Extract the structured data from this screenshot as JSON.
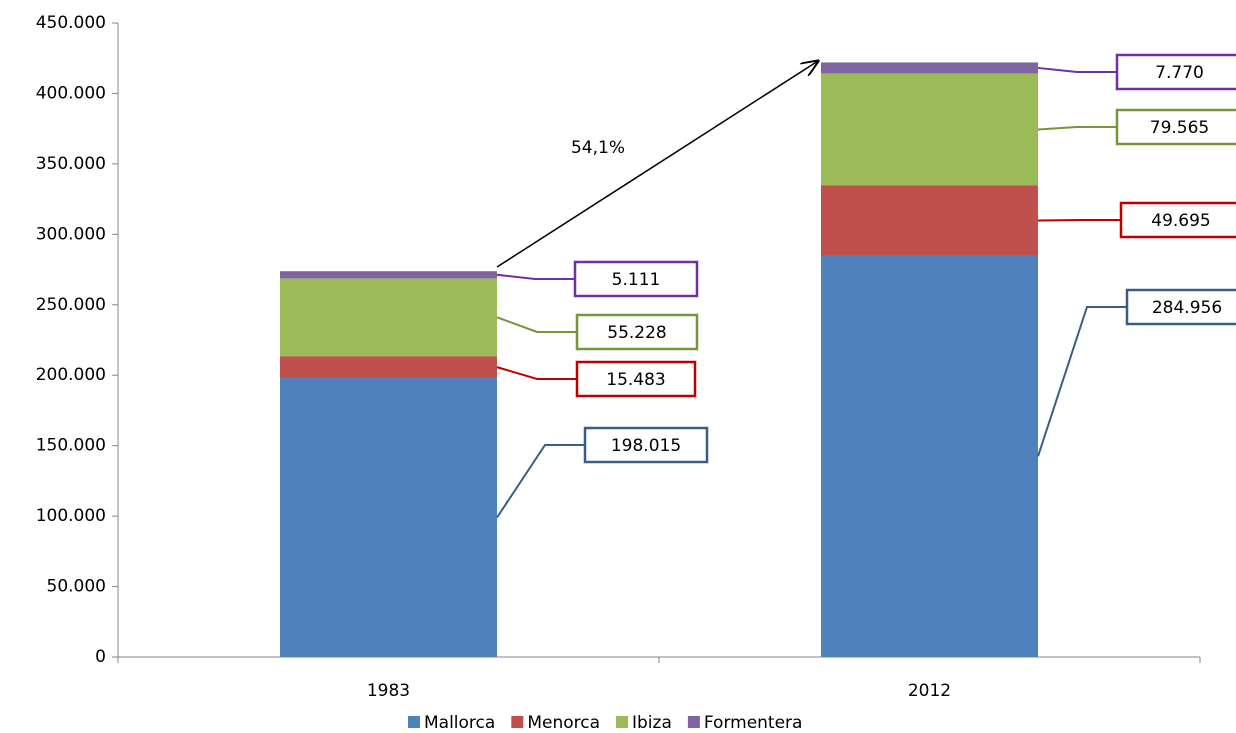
{
  "chart_data": {
    "type": "stacked-bar",
    "categories": [
      "1983",
      "2012"
    ],
    "series": [
      {
        "name": "Mallorca",
        "color": "#4f81bd",
        "label_color": "#385d8a",
        "values": [
          198015,
          284956
        ],
        "value_labels": [
          "198.015",
          "284.956"
        ]
      },
      {
        "name": "Menorca",
        "color": "#c0504d",
        "label_color": "#c00000",
        "values": [
          15483,
          49695
        ],
        "value_labels": [
          "15.483",
          "49.695"
        ]
      },
      {
        "name": "Ibiza",
        "color": "#9bbb59",
        "label_color": "#77933c",
        "values": [
          55228,
          79565
        ],
        "value_labels": [
          "55.228",
          "79.565"
        ]
      },
      {
        "name": "Formentera",
        "color": "#8064a2",
        "label_color": "#7030a0",
        "values": [
          5111,
          7770
        ],
        "value_labels": [
          "5.111",
          "7.770"
        ]
      }
    ],
    "annotation": "54,1%",
    "ylim": [
      0,
      450000
    ],
    "yticks": [
      0,
      {
        "value": 50000,
        "label": "50.000"
      },
      {
        "value": 100000,
        "label": "100.000"
      },
      {
        "value": 150000,
        "label": "150.000"
      },
      {
        "value": 200000,
        "label": "200.000"
      },
      {
        "value": 250000,
        "label": "250.000"
      },
      {
        "value": 300000,
        "label": "300.000"
      },
      {
        "value": 350000,
        "label": "350.000"
      },
      {
        "value": 400000,
        "label": "400.000"
      },
      {
        "value": 450000,
        "label": "450.000"
      }
    ],
    "legend": "bottom"
  }
}
